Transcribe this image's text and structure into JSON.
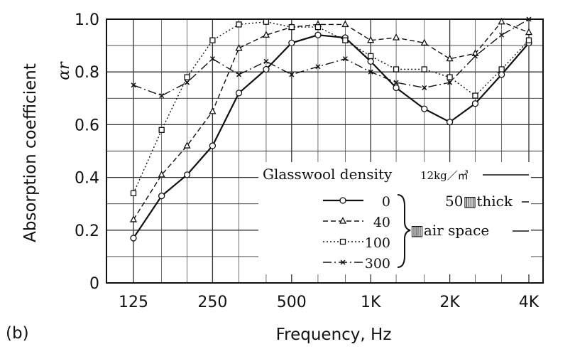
{
  "panel_label": "(b)",
  "chart_data": {
    "type": "line",
    "xlabel": "Frequency, Hz",
    "ylabel": "Absorption coefficient",
    "ylabel_symbol": "αr",
    "x_scale": "log (third-octave bands)",
    "x_ticks": [
      "125",
      "250",
      "500",
      "1K",
      "2K",
      "4K"
    ],
    "ylim": [
      0,
      1.0
    ],
    "y_ticks": [
      "0",
      "0.2",
      "0.4",
      "0.6",
      "0.8",
      "1.0"
    ],
    "grid": true,
    "legend_placement": "lower-right",
    "legend_title": "Glasswool density",
    "legend_title_unit": "12kg／㎥",
    "legend_note_1": "50▥thick",
    "legend_note_2": "▥air space",
    "x": [
      125,
      160,
      200,
      250,
      315,
      400,
      500,
      630,
      800,
      1000,
      1250,
      1600,
      2000,
      2500,
      3150,
      4000
    ],
    "series": [
      {
        "name": "0",
        "marker": "circle",
        "dash": "solid",
        "values": [
          0.17,
          0.33,
          0.41,
          0.52,
          0.72,
          0.81,
          0.91,
          0.94,
          0.93,
          0.84,
          0.74,
          0.66,
          0.61,
          0.68,
          0.79,
          0.91
        ]
      },
      {
        "name": "40",
        "marker": "triangle",
        "dash": "dashed",
        "values": [
          0.24,
          0.41,
          0.52,
          0.65,
          0.89,
          0.94,
          0.97,
          0.98,
          0.98,
          0.92,
          0.93,
          0.91,
          0.85,
          0.87,
          0.99,
          0.95
        ]
      },
      {
        "name": "100",
        "marker": "square",
        "dash": "dotted",
        "values": [
          0.34,
          0.58,
          0.78,
          0.92,
          0.98,
          0.99,
          0.97,
          0.97,
          0.92,
          0.86,
          0.81,
          0.81,
          0.78,
          0.71,
          0.81,
          0.92
        ]
      },
      {
        "name": "300",
        "marker": "cross",
        "dash": "dashdot",
        "values": [
          0.75,
          0.71,
          0.76,
          0.85,
          0.79,
          0.84,
          0.79,
          0.82,
          0.85,
          0.8,
          0.76,
          0.74,
          0.76,
          0.86,
          0.94,
          1.0
        ]
      }
    ]
  }
}
